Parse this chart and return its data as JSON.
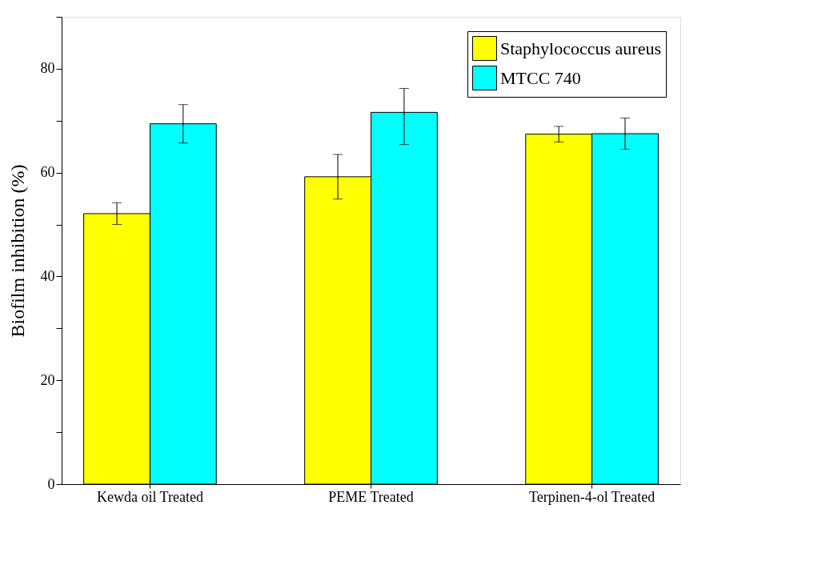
{
  "chart_data": {
    "type": "bar",
    "ylabel": "Biofilm inhibition (%)",
    "categories": [
      "Kewda oil Treated",
      "PEME Treated",
      "Terpinen-4-ol Treated"
    ],
    "series": [
      {
        "name": "Staphylococcus aureus",
        "color": "#ffff00",
        "values": [
          52.1,
          59.2,
          67.4
        ],
        "errors": [
          2.1,
          4.3,
          1.5
        ]
      },
      {
        "name": "MTCC 740",
        "color": "#00ffff",
        "values": [
          69.4,
          71.6,
          67.5
        ],
        "errors": [
          3.7,
          [
            65.4,
            76.2
          ],
          3.0
        ]
      }
    ],
    "ylim": [
      0,
      90
    ],
    "yticks": [
      0,
      {
        "value": 10,
        "label": null
      },
      20,
      {
        "value": 30,
        "label": null
      },
      40,
      {
        "value": 50,
        "label": null
      },
      60,
      {
        "value": 70,
        "label": null
      },
      80,
      {
        "value": 90,
        "label": null
      }
    ],
    "legend": "top right",
    "grid": false
  }
}
